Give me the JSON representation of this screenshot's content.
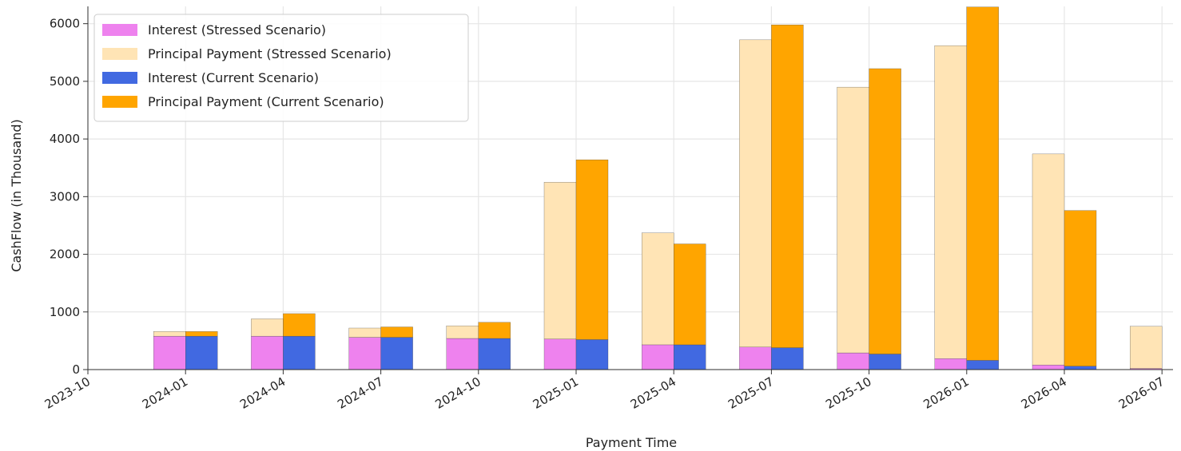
{
  "chart_data": {
    "type": "bar",
    "title": "",
    "xlabel": "Payment Time",
    "ylabel": "CashFlow (in Thousand)",
    "ylim": [
      0,
      6300
    ],
    "y_ticks": [
      0,
      1000,
      2000,
      3000,
      4000,
      5000,
      6000
    ],
    "x_ticks": [
      "2023-10",
      "2024-01",
      "2024-04",
      "2024-07",
      "2024-10",
      "2025-01",
      "2025-04",
      "2025-07",
      "2025-10",
      "2026-01",
      "2026-04",
      "2026-07"
    ],
    "grid": true,
    "legend_position": "top-left",
    "stacked": true,
    "categories": [
      "2024-01",
      "2024-04",
      "2024-07",
      "2024-10",
      "2025-01",
      "2025-04",
      "2025-07",
      "2025-10",
      "2026-01",
      "2026-04",
      "2026-07"
    ],
    "series": [
      {
        "name": "Interest (Stressed Scenario)",
        "color": "#ee82ee",
        "group": "stressed",
        "values": [
          580,
          580,
          560,
          540,
          530,
          430,
          390,
          290,
          190,
          80,
          20
        ]
      },
      {
        "name": "Principal Payment (Stressed Scenario)",
        "color": "#ffe4b5",
        "group": "stressed",
        "values": [
          80,
          300,
          160,
          220,
          2720,
          1940,
          5330,
          4610,
          5430,
          3660,
          730
        ]
      },
      {
        "name": "Interest (Current Scenario)",
        "color": "#4169e1",
        "group": "current",
        "values": [
          580,
          580,
          560,
          540,
          520,
          430,
          380,
          270,
          160,
          60,
          0
        ]
      },
      {
        "name": "Principal Payment (Current Scenario)",
        "color": "#ffa500",
        "group": "current",
        "values": [
          80,
          390,
          180,
          280,
          3120,
          1750,
          5600,
          4950,
          6130,
          2700,
          0
        ]
      }
    ]
  }
}
